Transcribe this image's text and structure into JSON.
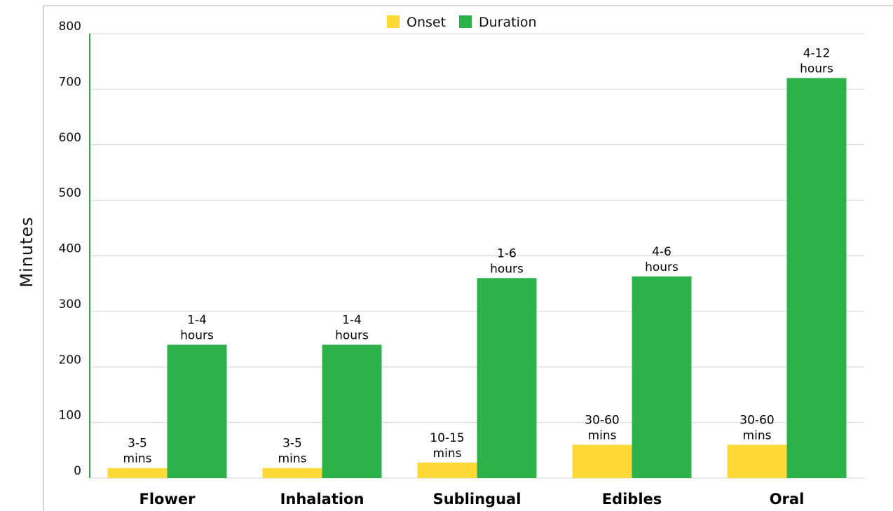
{
  "chart_data": {
    "type": "bar",
    "ylabel": "Minutes",
    "ylim": [
      0,
      800
    ],
    "yticks": [
      0,
      100,
      200,
      300,
      400,
      500,
      600,
      700,
      800
    ],
    "grid": true,
    "legend_position": "top-center",
    "categories": [
      "Flower",
      "Inhalation",
      "Sublingual",
      "Edibles",
      "Oral"
    ],
    "series": [
      {
        "name": "Onset",
        "color": "#FDDA35",
        "values": [
          18,
          18,
          28,
          60,
          60
        ],
        "labels": [
          [
            "3-5",
            "mins"
          ],
          [
            "3-5",
            "mins"
          ],
          [
            "10-15",
            "mins"
          ],
          [
            "30-60",
            "mins"
          ],
          [
            "30-60",
            "mins"
          ]
        ]
      },
      {
        "name": "Duration",
        "color": "#2DB14A",
        "values": [
          240,
          240,
          360,
          363,
          720
        ],
        "labels": [
          [
            "1-4",
            "hours"
          ],
          [
            "1-4",
            "hours"
          ],
          [
            "1-6",
            "hours"
          ],
          [
            "4-6",
            "hours"
          ],
          [
            "4-12",
            "hours"
          ]
        ]
      }
    ]
  }
}
